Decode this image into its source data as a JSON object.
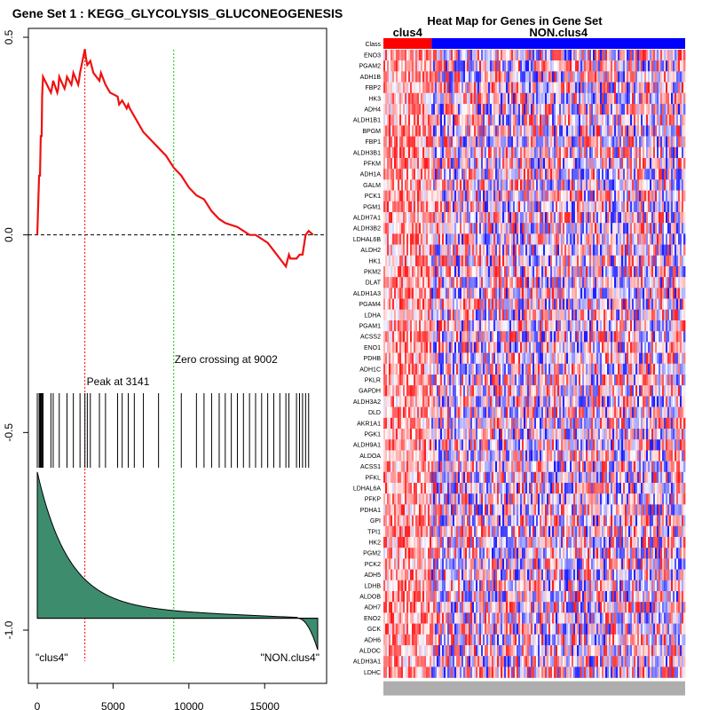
{
  "chart_data": [
    {
      "type": "line",
      "title": "Gene Set  1 : KEGG_GLYCOLYSIS_GLUCONEOGENESIS",
      "xlabel": "",
      "ylabel": "",
      "xlim": [
        0,
        18500
      ],
      "ylim": [
        -1.0,
        0.5
      ],
      "x_ticks": [
        0,
        5000,
        10000,
        15000
      ],
      "y_ticks": [
        -1.0,
        -0.5,
        0.0,
        0.5
      ],
      "x_tick_labels": [
        "0",
        "5000",
        "10000",
        "15000"
      ],
      "y_tick_labels": [
        "-1.0",
        "-0.5",
        "0.0",
        "0.5"
      ],
      "series": [
        {
          "name": "",
          "color": "#ee1111",
          "x": [
            0,
            120,
            180,
            230,
            290,
            320,
            380,
            900,
            960,
            1050,
            1320,
            1380,
            1450,
            1800,
            1870,
            1960,
            2250,
            2300,
            2380,
            2700,
            2750,
            2820,
            3141,
            3200,
            3300,
            3500,
            3700,
            4100,
            4200,
            4500,
            4800,
            5300,
            5400,
            5600,
            5900,
            6000,
            6100,
            6400,
            6700,
            7000,
            7500,
            8000,
            8500,
            9002,
            9500,
            10000,
            10500,
            11000,
            11500,
            12000,
            12400,
            12800,
            13200,
            13600,
            14000,
            14400,
            14800,
            15200,
            15600,
            16000,
            16400,
            16600,
            16700,
            16900,
            17100,
            17300,
            17500,
            17700,
            17900,
            18200
          ],
          "y": [
            0.0,
            0.15,
            0.15,
            0.25,
            0.25,
            0.35,
            0.4,
            0.36,
            0.37,
            0.39,
            0.36,
            0.37,
            0.4,
            0.37,
            0.38,
            0.4,
            0.38,
            0.39,
            0.41,
            0.38,
            0.39,
            0.41,
            0.47,
            0.45,
            0.43,
            0.44,
            0.41,
            0.39,
            0.41,
            0.38,
            0.36,
            0.35,
            0.33,
            0.34,
            0.32,
            0.33,
            0.32,
            0.3,
            0.28,
            0.26,
            0.24,
            0.22,
            0.2,
            0.17,
            0.15,
            0.12,
            0.1,
            0.09,
            0.06,
            0.04,
            0.03,
            0.025,
            0.02,
            0.01,
            0.0,
            0.0,
            -0.01,
            -0.02,
            -0.04,
            -0.06,
            -0.08,
            -0.05,
            -0.06,
            -0.06,
            -0.06,
            -0.05,
            -0.05,
            0.0,
            0.01,
            0.0
          ]
        }
      ],
      "hit_positions": [
        0,
        120,
        180,
        230,
        290,
        320,
        380,
        900,
        1050,
        1450,
        1960,
        2380,
        2820,
        3141,
        3300,
        3500,
        4100,
        4500,
        5300,
        5600,
        6000,
        6400,
        7000,
        8000,
        9500,
        10500,
        11000,
        11500,
        12000,
        12400,
        12800,
        13200,
        13600,
        14000,
        14400,
        14800,
        15200,
        15600,
        16000,
        16400,
        16600,
        17100,
        17300,
        17500,
        17700,
        17900
      ],
      "ranked_metric": {
        "x_start": 0,
        "x_end": 18500,
        "y_top": -0.6,
        "y_zero": -0.97,
        "y_bottom": -1.05,
        "shape": "decay",
        "fill": "#3d8c6e"
      },
      "annotations": [
        {
          "text": "Peak at 3141",
          "x": 3141,
          "color": "#ff0000"
        },
        {
          "text": "Zero crossing at 9002",
          "x": 9002,
          "color": "#00cc00"
        }
      ],
      "corner_labels": [
        "\"clus4\"",
        "\"NON.clus4\""
      ]
    },
    {
      "type": "heatmap",
      "title": "Heat Map for Genes in Gene Set",
      "class_label": "Class",
      "groups": [
        {
          "name": "clus4",
          "color": "#ff0000",
          "fraction": 0.16
        },
        {
          "name": "NON.clus4",
          "color": "#0000ff",
          "fraction": 0.84
        }
      ],
      "genes": [
        "ENO3",
        "PGAM2",
        "ADH1B",
        "FBP2",
        "HK3",
        "ADH4",
        "ALDH1B1",
        "BPGM",
        "FBP1",
        "ALDH3B1",
        "PFKM",
        "ADH1A",
        "GALM",
        "PCK1",
        "PGM1",
        "ALDH7A1",
        "ALDH3B2",
        "LDHAL6B",
        "ALDH2",
        "HK1",
        "PKM2",
        "DLAT",
        "ALDH1A3",
        "PGAM4",
        "LDHA",
        "PGAM1",
        "ACSS2",
        "ENO1",
        "PDHB",
        "ADH1C",
        "PKLR",
        "GAPDH",
        "ALDH3A2",
        "DLD",
        "AKR1A1",
        "PGK1",
        "ALDH9A1",
        "ALDOA",
        "ACSS1",
        "PFKL",
        "LDHAL6A",
        "PFKP",
        "PDHA1",
        "GPI",
        "TPI1",
        "HK2",
        "PGM2",
        "PCK2",
        "ADH5",
        "LDHB",
        "ALDOB",
        "ADH7",
        "ENO2",
        "GCK",
        "ADH6",
        "ALDOC",
        "ALDH3A1",
        "LDHC"
      ],
      "colormap": [
        "#0000ff",
        "#ffffff",
        "#ff0000"
      ]
    }
  ]
}
